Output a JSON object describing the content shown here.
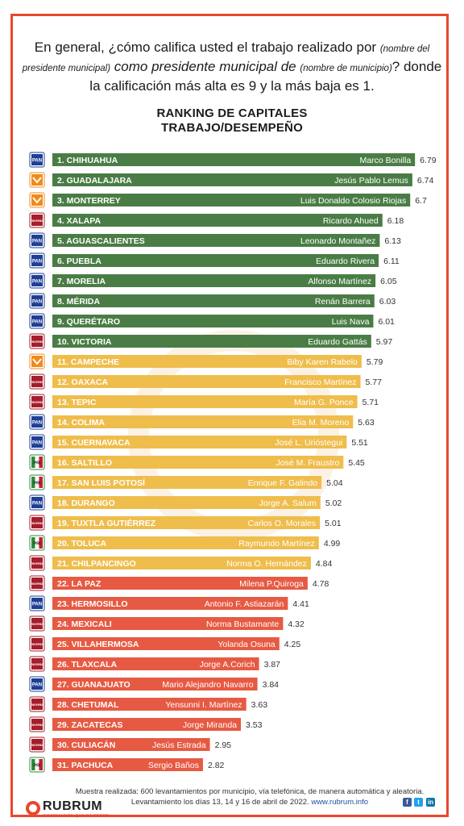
{
  "question": {
    "p1": "En general, ¿cómo califica usted el trabajo realizado por ",
    "p2": "(nombre del presidente municipal)",
    "p3": " como presidente municipal de ",
    "p4": "(nombre de municipio)",
    "p5": "? donde la calificación más alta es 9 y la más baja es 1."
  },
  "footer": {
    "line1": "Muestra realizada: 600 levantamientos por municipio, vía telefónica, de manera automática y aleatoria.",
    "line2a": "Levantamiento los días 13, 14 y 16 de abril de 2022. ",
    "line2b": "www.rubrum.info"
  },
  "logo": {
    "name": "RUBRUM",
    "tagline": "INFORMACIÓN QUE DA PODER"
  },
  "social_icons": [
    "facebook-icon",
    "twitter-icon",
    "linkedin-icon"
  ],
  "colors": {
    "green": "#4a7d45",
    "yellow": "#efbd4c",
    "red": "#e65a43",
    "frame": "#e8472f",
    "PAN": "#1f3f95",
    "MORENA": "#a61d2b",
    "MC": "#f28a1b",
    "PRI": "#2f8a3b"
  },
  "chart_data": {
    "type": "bar",
    "orientation": "horizontal",
    "title": "RANKING DE CAPITALES",
    "subtitle": "TRABAJO/DESEMPEÑO",
    "xlabel": "",
    "ylabel": "",
    "xlim": [
      0,
      9
    ],
    "grid": false,
    "categories": [
      "1. CHIHUAHUA",
      "2. GUADALAJARA",
      "3. MONTERREY",
      "4. XALAPA",
      "5. AGUASCALIENTES",
      "6. PUEBLA",
      "7. MORELIA",
      "8. MÉRIDA",
      "9. QUERÉTARO",
      "10. VICTORIA",
      "11. CAMPECHE",
      "12. OAXACA",
      "13. TEPIC",
      "14. COLIMA",
      "15. CUERNAVACA",
      "16. SALTILLO",
      "17. SAN LUIS POTOSÍ",
      "18. DURANGO",
      "19. TUXTLA GUTIÉRREZ",
      "20. TOLUCA",
      "21. CHILPANCINGO",
      "22. LA PAZ",
      "23. HERMOSILLO",
      "24. MEXICALI",
      "25. VILLAHERMOSA",
      "26. TLAXCALA",
      "27. GUANAJUATO",
      "28. CHETUMAL",
      "29. ZACATECAS",
      "30. CULIACÁN",
      "31. PACHUCA"
    ],
    "values": [
      6.79,
      6.74,
      6.7,
      6.18,
      6.13,
      6.11,
      6.05,
      6.03,
      6.01,
      5.97,
      5.79,
      5.77,
      5.71,
      5.63,
      5.51,
      5.45,
      5.04,
      5.02,
      5.01,
      4.99,
      4.84,
      4.78,
      4.41,
      4.32,
      4.25,
      3.87,
      3.84,
      3.63,
      3.53,
      2.95,
      2.82
    ],
    "value_labels": [
      "6.79",
      "6.74",
      "6.7",
      "6.18",
      "6.13",
      "6.11",
      "6.05",
      "6.03",
      "6.01",
      "5.97",
      "5.79",
      "5.77",
      "5.71",
      "5.63",
      "5.51",
      "5.45",
      "5.04",
      "5.02",
      "5.01",
      "4.99",
      "4.84",
      "4.78",
      "4.41",
      "4.32",
      "4.25",
      "3.87",
      "3.84",
      "3.63",
      "3.53",
      "2.95",
      "2.82"
    ],
    "mayors": [
      "Marco Bonilla",
      "Jesús Pablo Lemus",
      "Luis Donaldo Colosio Riojas",
      "Ricardo Ahued",
      "Leonardo Montañez",
      "Eduardo Rivera",
      "Alfonso Martínez",
      "Renán Barrera",
      "Luis Nava",
      "Eduardo Gattás",
      "Biby Karen Rabelo",
      "Francisco Martínez",
      "María G. Ponce",
      "Elia M. Moreno",
      "José L. Urióstegui",
      "José M. Fraustro",
      "Enrique F. Galindo",
      "Jorge A. Salum",
      "Carlos O. Morales",
      "Raymundo  Martínez",
      "Norma O. Hernández",
      "Milena P.Quiroga",
      "Antonio F. Astiazarán",
      "Norma  Bustamante",
      "Yolanda Osuna",
      "Jorge A.Corich",
      "Mario Alejandro Navarro",
      "Yensunni I. Martínez",
      "Jorge Miranda",
      "Jesús Estrada",
      "Sergio Baños"
    ],
    "parties": [
      "PAN",
      "MC",
      "MC",
      "MORENA",
      "PAN",
      "PAN",
      "PAN",
      "PAN",
      "PAN",
      "MORENA",
      "MC",
      "MORENA",
      "MORENA",
      "PAN",
      "PAN",
      "PRI",
      "PRI",
      "PAN",
      "MORENA",
      "PRI",
      "MORENA",
      "MORENA",
      "PAN",
      "MORENA",
      "MORENA",
      "MORENA",
      "PAN",
      "MORENA",
      "MORENA",
      "MORENA",
      "PRI"
    ],
    "tiers": [
      "green",
      "green",
      "green",
      "green",
      "green",
      "green",
      "green",
      "green",
      "green",
      "green",
      "yellow",
      "yellow",
      "yellow",
      "yellow",
      "yellow",
      "yellow",
      "yellow",
      "yellow",
      "yellow",
      "yellow",
      "yellow",
      "red",
      "red",
      "red",
      "red",
      "red",
      "red",
      "red",
      "red",
      "red",
      "red"
    ],
    "party_logo_text": {
      "PAN": "PAN",
      "MORENA": "morena",
      "MC": "",
      "PRI": "PRI"
    }
  }
}
